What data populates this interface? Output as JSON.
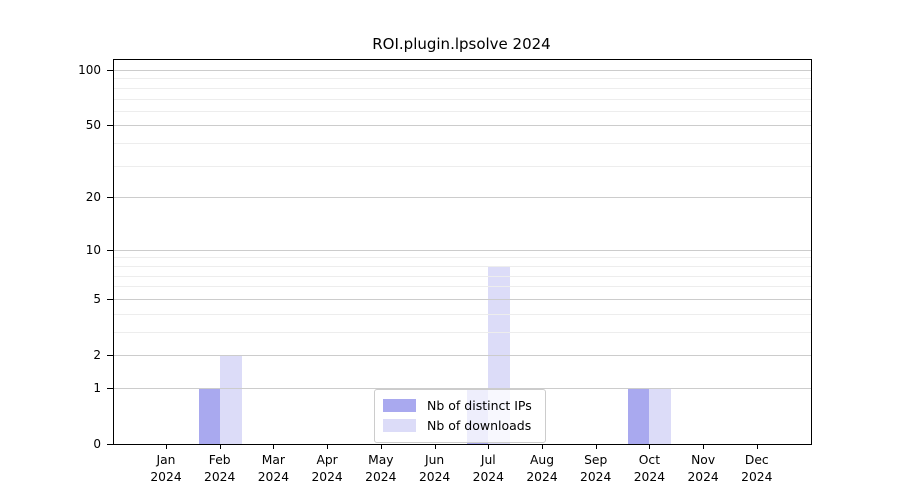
{
  "chart_data": {
    "type": "bar",
    "title": "ROI.plugin.lpsolve 2024",
    "categories": [
      {
        "month": "Jan",
        "year": "2024"
      },
      {
        "month": "Feb",
        "year": "2024"
      },
      {
        "month": "Mar",
        "year": "2024"
      },
      {
        "month": "Apr",
        "year": "2024"
      },
      {
        "month": "May",
        "year": "2024"
      },
      {
        "month": "Jun",
        "year": "2024"
      },
      {
        "month": "Jul",
        "year": "2024"
      },
      {
        "month": "Aug",
        "year": "2024"
      },
      {
        "month": "Sep",
        "year": "2024"
      },
      {
        "month": "Oct",
        "year": "2024"
      },
      {
        "month": "Nov",
        "year": "2024"
      },
      {
        "month": "Dec",
        "year": "2024"
      }
    ],
    "series": [
      {
        "name": "Nb of distinct IPs",
        "color": "#a9a9ef",
        "values": [
          0,
          1,
          0,
          0,
          0,
          0,
          1,
          0,
          0,
          1,
          0,
          0
        ]
      },
      {
        "name": "Nb of downloads",
        "color": "#dcdcf8",
        "values": [
          0,
          2,
          0,
          0,
          0,
          0,
          8,
          0,
          0,
          1,
          0,
          0
        ]
      }
    ],
    "y_scale": "log10(1+v)",
    "ylim": [
      0,
      113
    ],
    "y_major_ticks": [
      0,
      1,
      2,
      5,
      10,
      20,
      50,
      100
    ],
    "y_minor_ticks": [
      3,
      4,
      6,
      7,
      8,
      9,
      30,
      40,
      60,
      70,
      80,
      90
    ],
    "grid": "horizontal major+minor",
    "legend_position": "bottom-center-inside",
    "xlabel": "",
    "ylabel": ""
  },
  "style": {
    "background": "#ffffff",
    "text_color": "#000000",
    "frame_color": "#000000",
    "grid_major_color": "#cccccc",
    "grid_minor_color": "#ededed"
  }
}
